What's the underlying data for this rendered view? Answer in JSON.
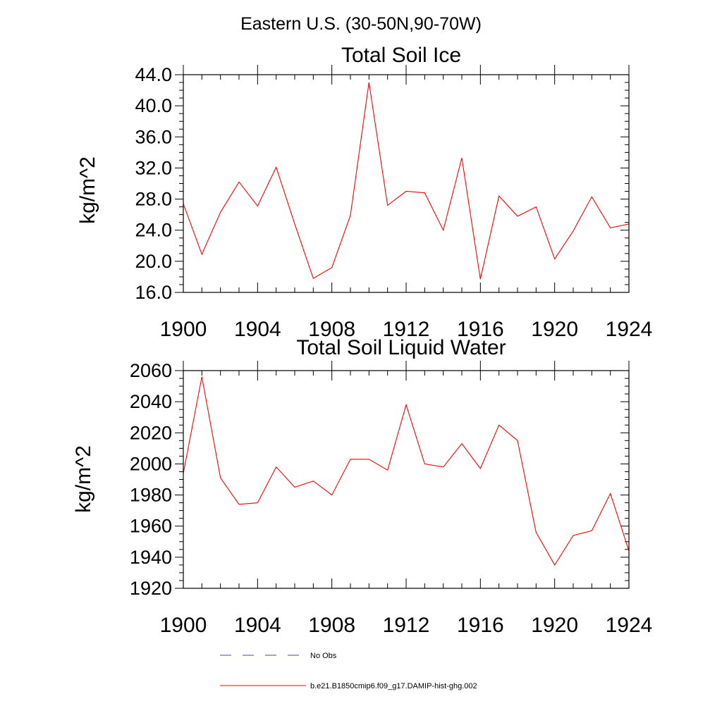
{
  "page_title": "Eastern U.S. (30-50N,90-70W)",
  "colors": {
    "model_line": "#ff0000",
    "obs_line": "#4a4a8a",
    "axis": "#000000",
    "background": "#ffffff"
  },
  "chart_data": [
    {
      "type": "line",
      "title": "Total Soil Ice",
      "xlabel": "",
      "ylabel": "kg/m^2",
      "xlim": [
        1900,
        1924
      ],
      "ylim": [
        16,
        44
      ],
      "x_ticks": [
        1900,
        1904,
        1908,
        1912,
        1916,
        1920,
        1924
      ],
      "x_tick_labels": [
        "1900",
        "1904",
        "1908",
        "1912",
        "1916",
        "1920",
        "1924"
      ],
      "y_ticks": [
        16,
        20,
        24,
        28,
        32,
        36,
        40,
        44
      ],
      "y_tick_labels": [
        "16.0",
        "20.0",
        "24.0",
        "28.0",
        "32.0",
        "36.0",
        "40.0",
        "44.0"
      ],
      "grid": false,
      "series": [
        {
          "name": "b.e21.B1850cmip6.f09_g17.DAMIP-hist-ghg.002",
          "color": "#ff0000",
          "x": [
            1900,
            1901,
            1902,
            1903,
            1904,
            1905,
            1906,
            1907,
            1908,
            1909,
            1910,
            1911,
            1912,
            1913,
            1914,
            1915,
            1916,
            1917,
            1918,
            1919,
            1920,
            1921,
            1922,
            1923,
            1924
          ],
          "values": [
            27.4,
            20.9,
            26.3,
            30.2,
            27.1,
            32.1,
            24.8,
            17.8,
            19.2,
            25.9,
            43.0,
            27.2,
            29.0,
            28.8,
            24.0,
            33.3,
            17.7,
            28.4,
            25.8,
            27.0,
            20.3,
            23.9,
            28.3,
            24.3,
            24.8
          ]
        }
      ]
    },
    {
      "type": "line",
      "title": "Total Soil Liquid Water",
      "xlabel": "",
      "ylabel": "kg/m^2",
      "xlim": [
        1900,
        1924
      ],
      "ylim": [
        1920,
        2060
      ],
      "x_ticks": [
        1900,
        1904,
        1908,
        1912,
        1916,
        1920,
        1924
      ],
      "x_tick_labels": [
        "1900",
        "1904",
        "1908",
        "1912",
        "1916",
        "1920",
        "1924"
      ],
      "y_ticks": [
        1920,
        1940,
        1960,
        1980,
        2000,
        2020,
        2040,
        2060
      ],
      "y_tick_labels": [
        "1920",
        "1940",
        "1960",
        "1980",
        "2000",
        "2020",
        "2040",
        "2060"
      ],
      "grid": false,
      "series": [
        {
          "name": "b.e21.B1850cmip6.f09_g17.DAMIP-hist-ghg.002",
          "color": "#ff0000",
          "x": [
            1900,
            1901,
            1902,
            1903,
            1904,
            1905,
            1906,
            1907,
            1908,
            1909,
            1910,
            1911,
            1912,
            1913,
            1914,
            1915,
            1916,
            1917,
            1918,
            1919,
            1920,
            1921,
            1922,
            1923,
            1924
          ],
          "values": [
            1994,
            2056,
            1991,
            1974,
            1975,
            1998,
            1985,
            1989,
            1980,
            2003,
            2003,
            1996,
            2038,
            2000,
            1998,
            2013,
            1997,
            2025,
            2015,
            1956,
            1935,
            1954,
            1957,
            1981,
            1944
          ]
        }
      ]
    }
  ],
  "legend": {
    "items": [
      {
        "label": "No Obs",
        "style": "dashed",
        "color": "#4a4a8a"
      },
      {
        "label": "b.e21.B1850cmip6.f09_g17.DAMIP-hist-ghg.002",
        "style": "solid",
        "color": "#ff0000"
      }
    ]
  }
}
